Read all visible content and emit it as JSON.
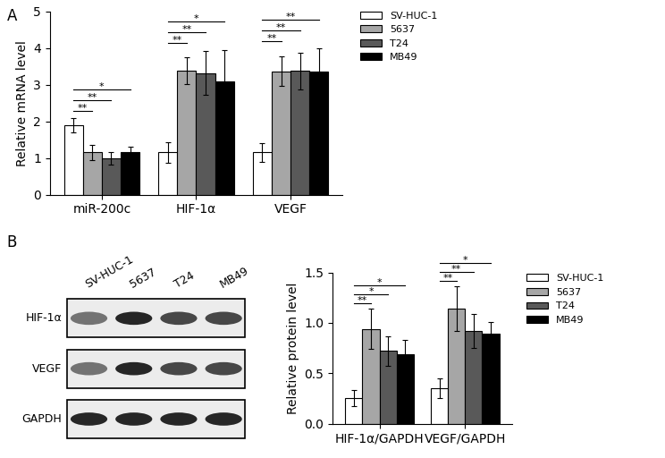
{
  "chart_data": [
    {
      "type": "bar",
      "panel": "A",
      "y_label": "Relative mRNA level",
      "categories": [
        "miR-200c",
        "HIF-1α",
        "VEGF"
      ],
      "series": [
        {
          "name": "SV-HUC-1",
          "color": "#ffffff",
          "values": [
            1.9,
            1.15,
            1.15
          ],
          "errors": [
            0.2,
            0.27,
            0.25
          ]
        },
        {
          "name": "5637",
          "color": "#a6a6a6",
          "values": [
            1.15,
            3.38,
            3.37
          ],
          "errors": [
            0.2,
            0.37,
            0.4
          ]
        },
        {
          "name": "T24",
          "color": "#595959",
          "values": [
            1.0,
            3.32,
            3.38
          ],
          "errors": [
            0.17,
            0.6,
            0.5
          ]
        },
        {
          "name": "MB49",
          "color": "#000000",
          "values": [
            1.15,
            3.1,
            3.35
          ],
          "errors": [
            0.17,
            0.85,
            0.65
          ]
        }
      ],
      "ylim": [
        0,
        5
      ],
      "yticks": [
        0,
        1,
        2,
        3,
        4,
        5
      ],
      "legend": "upper left",
      "annotations": [
        {
          "group": "miR-200c",
          "from": "SV-HUC-1",
          "to": "5637",
          "text": "**"
        },
        {
          "group": "miR-200c",
          "from": "SV-HUC-1",
          "to": "T24",
          "text": "**"
        },
        {
          "group": "miR-200c",
          "from": "SV-HUC-1",
          "to": "MB49",
          "text": "*"
        },
        {
          "group": "HIF-1α",
          "from": "SV-HUC-1",
          "to": "5637",
          "text": "**"
        },
        {
          "group": "HIF-1α",
          "from": "SV-HUC-1",
          "to": "T24",
          "text": "**"
        },
        {
          "group": "HIF-1α",
          "from": "SV-HUC-1",
          "to": "MB49",
          "text": "*"
        },
        {
          "group": "VEGF",
          "from": "SV-HUC-1",
          "to": "5637",
          "text": "**"
        },
        {
          "group": "VEGF",
          "from": "SV-HUC-1",
          "to": "T24",
          "text": "**"
        },
        {
          "group": "VEGF",
          "from": "SV-HUC-1",
          "to": "MB49",
          "text": "**"
        }
      ]
    },
    {
      "type": "bar",
      "y_label": "Relative protein level",
      "categories": [
        "HIF-1α/GAPDH",
        "VEGF/GAPDH"
      ],
      "series": [
        {
          "name": "SV-HUC-1",
          "color": "#ffffff",
          "values": [
            0.25,
            0.35
          ],
          "errors": [
            0.08,
            0.1
          ]
        },
        {
          "name": "5637",
          "color": "#a6a6a6",
          "values": [
            0.94,
            1.14
          ],
          "errors": [
            0.2,
            0.22
          ]
        },
        {
          "name": "T24",
          "color": "#595959",
          "values": [
            0.72,
            0.92
          ],
          "errors": [
            0.15,
            0.17
          ]
        },
        {
          "name": "MB49",
          "color": "#000000",
          "values": [
            0.69,
            0.89
          ],
          "errors": [
            0.14,
            0.12
          ]
        }
      ],
      "ylim": [
        0,
        1.5
      ],
      "yticks": [
        {
          "value": 0,
          "label": "0.0"
        },
        {
          "value": 0.5,
          "label": "0.5"
        },
        {
          "value": 1.0,
          "label": "1.0"
        },
        {
          "value": 1.5,
          "label": "1.5"
        }
      ],
      "legend": "upper left",
      "annotations": [
        {
          "group": "HIF-1α/GAPDH",
          "from": "SV-HUC-1",
          "to": "5637",
          "text": "**"
        },
        {
          "group": "HIF-1α/GAPDH",
          "from": "SV-HUC-1",
          "to": "T24",
          "text": "*"
        },
        {
          "group": "HIF-1α/GAPDH",
          "from": "SV-HUC-1",
          "to": "MB49",
          "text": "*"
        },
        {
          "group": "VEGF/GAPDH",
          "from": "SV-HUC-1",
          "to": "5637",
          "text": "**"
        },
        {
          "group": "VEGF/GAPDH",
          "from": "SV-HUC-1",
          "to": "T24",
          "text": "**"
        },
        {
          "group": "VEGF/GAPDH",
          "from": "SV-HUC-1",
          "to": "MB49",
          "text": "*"
        }
      ]
    }
  ],
  "blot": {
    "panel": "B",
    "lanes": [
      "SV-HUC-1",
      "5637",
      "T24",
      "MB49"
    ],
    "rows": [
      "HIF-1α",
      "VEGF",
      "GAPDH"
    ]
  }
}
